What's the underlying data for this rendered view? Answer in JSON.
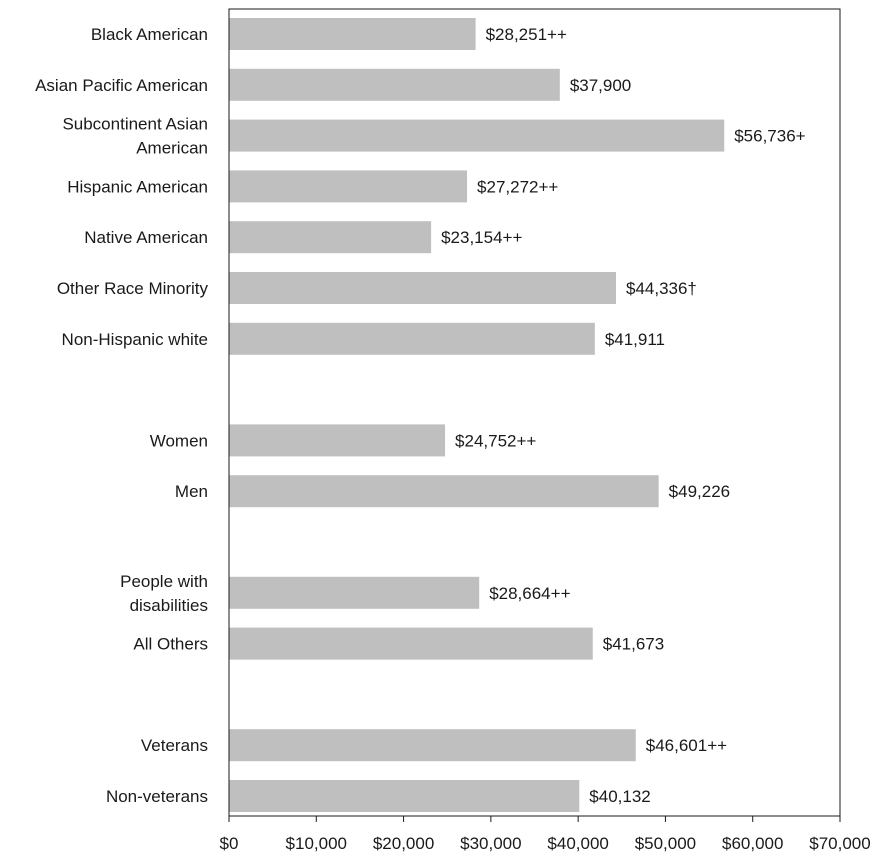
{
  "chart_data": {
    "type": "bar",
    "orientation": "horizontal",
    "title": "",
    "xlabel": "",
    "ylabel": "",
    "xlim": [
      0,
      70000
    ],
    "x_ticks": [
      0,
      10000,
      20000,
      30000,
      40000,
      50000,
      60000,
      70000
    ],
    "x_tick_labels": [
      "$0",
      "$10,000",
      "$20,000",
      "$30,000",
      "$40,000",
      "$50,000",
      "$60,000",
      "$70,000"
    ],
    "grid": false,
    "legend": "none",
    "bar_color": "#bfbfbf",
    "rows": [
      {
        "label": [
          "Black American"
        ],
        "value": 28251,
        "value_label": "$28,251++"
      },
      {
        "label": [
          "Asian Pacific American"
        ],
        "value": 37900,
        "value_label": "$37,900"
      },
      {
        "label": [
          "Subcontinent Asian",
          "American"
        ],
        "value": 56736,
        "value_label": "$56,736+"
      },
      {
        "label": [
          "Hispanic American"
        ],
        "value": 27272,
        "value_label": "$27,272++"
      },
      {
        "label": [
          "Native American"
        ],
        "value": 23154,
        "value_label": "$23,154++"
      },
      {
        "label": [
          "Other Race Minority"
        ],
        "value": 44336,
        "value_label": "$44,336†"
      },
      {
        "label": [
          "Non-Hispanic white"
        ],
        "value": 41911,
        "value_label": "$41,911"
      },
      null,
      {
        "label": [
          "Women"
        ],
        "value": 24752,
        "value_label": "$24,752++"
      },
      {
        "label": [
          "Men"
        ],
        "value": 49226,
        "value_label": "$49,226"
      },
      null,
      {
        "label": [
          "People with",
          "disabilities"
        ],
        "value": 28664,
        "value_label": "$28,664++"
      },
      {
        "label": [
          "All Others"
        ],
        "value": 41673,
        "value_label": "$41,673"
      },
      null,
      {
        "label": [
          "Veterans"
        ],
        "value": 46601,
        "value_label": "$46,601++"
      },
      {
        "label": [
          "Non-veterans"
        ],
        "value": 40132,
        "value_label": "$40,132"
      }
    ]
  }
}
